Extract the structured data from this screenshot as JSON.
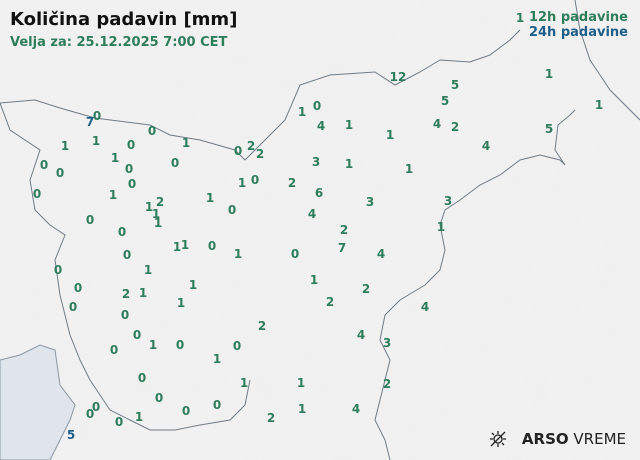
{
  "header": {
    "title": "Količina padavin [mm]",
    "valid_for": "Velja za: 25.12.2025 7:00 CET"
  },
  "legend": {
    "label_12h": "12h padavine",
    "label_24h": "24h padavine",
    "color_12h": "#2e7d5b",
    "color_24h": "#1f5f8b"
  },
  "brand": {
    "name_bold": "ARSO",
    "name_light": "VREME",
    "icon": "sun-weather-icon"
  },
  "stations": [
    {
      "v": "0",
      "t": "12h"
    },
    {
      "v": "7",
      "t": "24h"
    },
    {
      "v": "0",
      "t": "12h"
    },
    {
      "v": "1",
      "t": "12h"
    },
    {
      "v": "1",
      "t": "12h"
    },
    {
      "v": "0",
      "t": "12h"
    },
    {
      "v": "1",
      "t": "12h"
    },
    {
      "v": "0",
      "t": "12h"
    },
    {
      "v": "2",
      "t": "12h"
    },
    {
      "v": "2",
      "t": "12h"
    },
    {
      "v": "0",
      "t": "12h"
    },
    {
      "v": "0",
      "t": "12h"
    },
    {
      "v": "1",
      "t": "12h"
    },
    {
      "v": "0",
      "t": "12h"
    },
    {
      "v": "0",
      "t": "12h"
    },
    {
      "v": "0",
      "t": "12h"
    },
    {
      "v": "1",
      "t": "12h"
    },
    {
      "v": "0",
      "t": "12h"
    },
    {
      "v": "0",
      "t": "12h"
    },
    {
      "v": "1",
      "t": "12h"
    },
    {
      "v": "1",
      "t": "12h"
    },
    {
      "v": "2",
      "t": "12h"
    },
    {
      "v": "1",
      "t": "12h"
    },
    {
      "v": "1",
      "t": "12h"
    },
    {
      "v": "1",
      "t": "12h"
    },
    {
      "v": "0",
      "t": "12h"
    },
    {
      "v": "0",
      "t": "12h"
    },
    {
      "v": "0",
      "t": "12h"
    },
    {
      "v": "1",
      "t": "12h"
    },
    {
      "v": "1",
      "t": "12h"
    },
    {
      "v": "0",
      "t": "12h"
    },
    {
      "v": "1",
      "t": "12h"
    },
    {
      "v": "0",
      "t": "12h"
    },
    {
      "v": "0",
      "t": "12h"
    },
    {
      "v": "1",
      "t": "12h"
    },
    {
      "v": "1",
      "t": "12h"
    },
    {
      "v": "0",
      "t": "12h"
    },
    {
      "v": "2",
      "t": "12h"
    },
    {
      "v": "1",
      "t": "12h"
    },
    {
      "v": "1",
      "t": "12h"
    },
    {
      "v": "0",
      "t": "12h"
    },
    {
      "v": "0",
      "t": "12h"
    },
    {
      "v": "2",
      "t": "12h"
    },
    {
      "v": "0",
      "t": "12h"
    },
    {
      "v": "1",
      "t": "12h"
    },
    {
      "v": "0",
      "t": "12h"
    },
    {
      "v": "0",
      "t": "12h"
    },
    {
      "v": "0",
      "t": "12h"
    },
    {
      "v": "1",
      "t": "12h"
    },
    {
      "v": "0",
      "t": "12h"
    },
    {
      "v": "1",
      "t": "12h"
    },
    {
      "v": "0",
      "t": "12h"
    },
    {
      "v": "0",
      "t": "12h"
    },
    {
      "v": "0",
      "t": "12h"
    },
    {
      "v": "0",
      "t": "12h"
    },
    {
      "v": "1",
      "t": "12h"
    },
    {
      "v": "0",
      "t": "12h"
    },
    {
      "v": "0",
      "t": "12h"
    },
    {
      "v": "2",
      "t": "12h"
    },
    {
      "v": "5",
      "t": "24h"
    },
    {
      "v": "12",
      "t": "12h"
    },
    {
      "v": "5",
      "t": "12h"
    },
    {
      "v": "5",
      "t": "12h"
    },
    {
      "v": "1",
      "t": "12h"
    },
    {
      "v": "0",
      "t": "12h"
    },
    {
      "v": "4",
      "t": "12h"
    },
    {
      "v": "1",
      "t": "12h"
    },
    {
      "v": "1",
      "t": "12h"
    },
    {
      "v": "4",
      "t": "12h"
    },
    {
      "v": "2",
      "t": "12h"
    },
    {
      "v": "4",
      "t": "12h"
    },
    {
      "v": "1",
      "t": "12h"
    },
    {
      "v": "1",
      "t": "12h"
    },
    {
      "v": "5",
      "t": "12h"
    },
    {
      "v": "1",
      "t": "12h"
    },
    {
      "v": "3",
      "t": "12h"
    },
    {
      "v": "1",
      "t": "12h"
    },
    {
      "v": "1",
      "t": "12h"
    },
    {
      "v": "2",
      "t": "12h"
    },
    {
      "v": "6",
      "t": "12h"
    },
    {
      "v": "3",
      "t": "12h"
    },
    {
      "v": "4",
      "t": "12h"
    },
    {
      "v": "3",
      "t": "12h"
    },
    {
      "v": "2",
      "t": "12h"
    },
    {
      "v": "1",
      "t": "12h"
    },
    {
      "v": "7",
      "t": "12h"
    },
    {
      "v": "4",
      "t": "12h"
    },
    {
      "v": "0",
      "t": "12h"
    },
    {
      "v": "1",
      "t": "12h"
    },
    {
      "v": "2",
      "t": "12h"
    },
    {
      "v": "2",
      "t": "12h"
    },
    {
      "v": "4",
      "t": "12h"
    },
    {
      "v": "4",
      "t": "12h"
    },
    {
      "v": "3",
      "t": "12h"
    },
    {
      "v": "2",
      "t": "12h"
    },
    {
      "v": "1",
      "t": "12h"
    },
    {
      "v": "1",
      "t": "12h"
    },
    {
      "v": "4",
      "t": "12h"
    }
  ]
}
